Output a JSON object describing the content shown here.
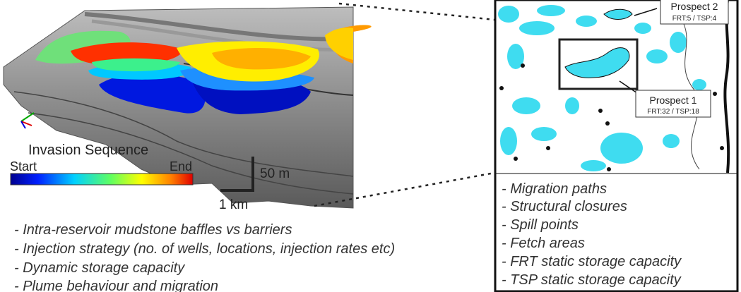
{
  "left_panel": {
    "legend_title": "Invasion Sequence",
    "legend_start": "Start",
    "legend_end": "End",
    "scale_vertical": "50 m",
    "scale_horizontal": "1 km"
  },
  "left_list": [
    "- Intra-reservoir mudstone baffles vs barriers",
    "- Injection strategy (no. of wells, locations, injection rates etc)",
    "- Dynamic storage capacity",
    "- Plume behaviour and migration"
  ],
  "right_panel": {
    "prospects": [
      {
        "name": "Prospect 2",
        "stats": "FRT:5 / TSP:4"
      },
      {
        "name": "Prospect 1",
        "stats": "FRT:32 / TSP:18"
      }
    ]
  },
  "right_list": [
    "- Migration paths",
    "- Structural closures",
    "- Spill points",
    "- Fetch areas",
    "- FRT static storage capacity",
    "- TSP static storage capacity"
  ]
}
